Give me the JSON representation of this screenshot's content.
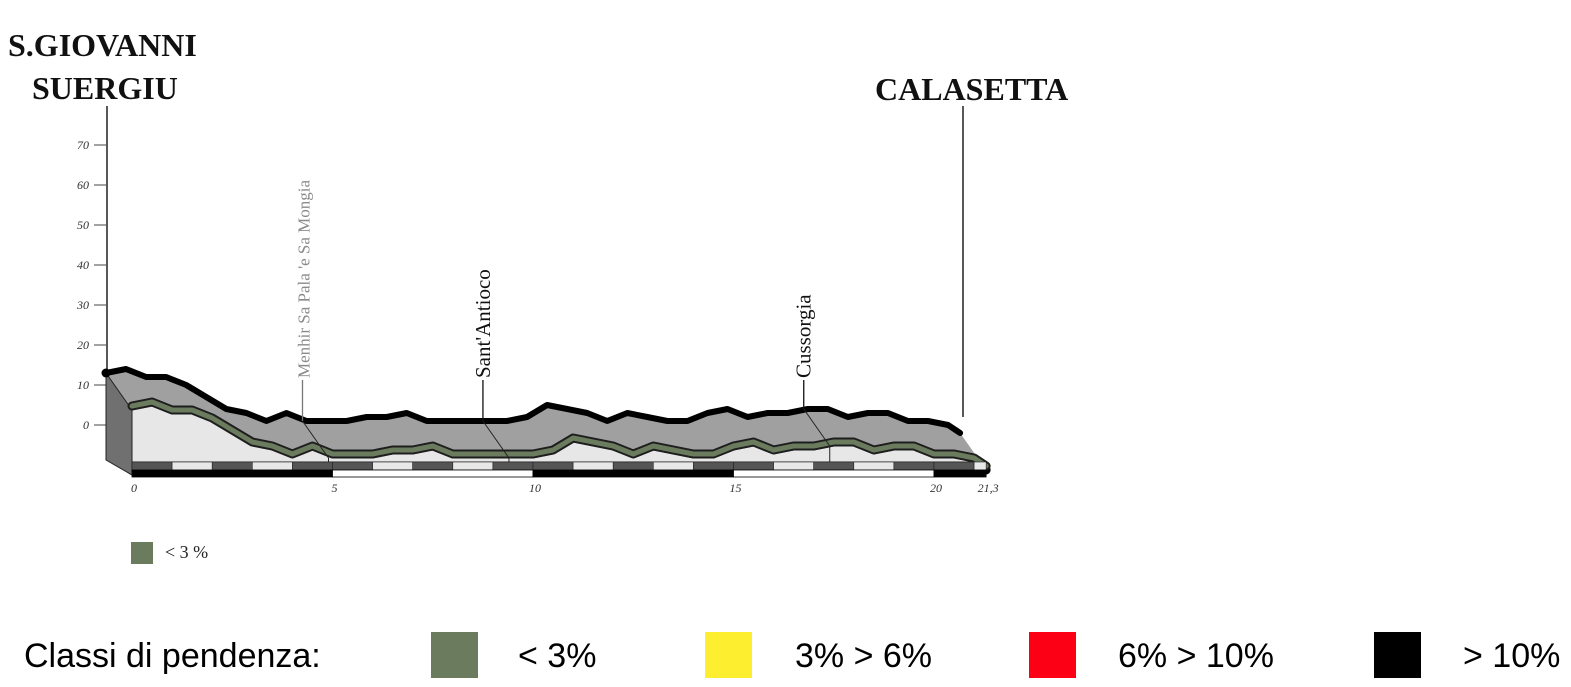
{
  "chart_data": {
    "type": "area",
    "places": {
      "start": [
        "S.GIOVANNI",
        "SUERGIU"
      ],
      "end": "CALASETTA"
    },
    "y_ticks": [
      "70",
      "60",
      "50",
      "40",
      "30",
      "20",
      "10",
      "0"
    ],
    "y_tick_values": [
      70,
      60,
      50,
      40,
      30,
      20,
      10,
      0
    ],
    "x_ticks": [
      {
        "value": 0,
        "label": "0"
      },
      {
        "value": 5,
        "label": "5"
      },
      {
        "value": 10,
        "label": "10"
      },
      {
        "value": 15,
        "label": "15"
      },
      {
        "value": 20,
        "label": "20"
      },
      {
        "value": 21.3,
        "label": "21,3"
      }
    ],
    "xlim": [
      0,
      21.3
    ],
    "ylim": [
      0,
      70
    ],
    "profile": {
      "x": [
        0,
        0.5,
        1,
        1.5,
        2,
        2.5,
        3,
        3.5,
        4,
        4.5,
        5,
        5.5,
        6,
        6.5,
        7,
        7.5,
        8,
        8.5,
        9,
        9.5,
        10,
        10.5,
        11,
        11.5,
        12,
        12.5,
        13,
        13.5,
        14,
        14.5,
        15,
        15.5,
        16,
        16.5,
        17,
        17.5,
        18,
        18.5,
        19,
        19.5,
        20,
        20.5,
        21,
        21.3
      ],
      "y": [
        13,
        14,
        12,
        12,
        10,
        7,
        4,
        3,
        1,
        3,
        1,
        1,
        1,
        2,
        2,
        3,
        1,
        1,
        1,
        1,
        1,
        2,
        5,
        4,
        3,
        1,
        3,
        2,
        1,
        1,
        3,
        4,
        2,
        3,
        3,
        4,
        4,
        2,
        3,
        3,
        1,
        1,
        0,
        -2
      ]
    },
    "points_of_interest": [
      {
        "label": "Menhir Sa Pala 'e Sa Mongia",
        "x": 4.9,
        "minor": true
      },
      {
        "label": "Sant'Antioco",
        "x": 9.4,
        "minor": false
      },
      {
        "label": "Cussorgia",
        "x": 17.4,
        "minor": false
      }
    ],
    "legend": [
      {
        "label": "< 3 %",
        "color": "#6b7b5e"
      }
    ]
  },
  "classes": {
    "title": "Classi di pendenza:",
    "items": [
      {
        "label": "< 3%",
        "color": "#6b7b5e"
      },
      {
        "label": "3% > 6%",
        "color": "#fdee2f"
      },
      {
        "label": "6% > 10%",
        "color": "#fc0016"
      },
      {
        "label": "> 10%",
        "color": "#000000"
      }
    ]
  },
  "colors": {
    "top_surface": "#a0a0a0",
    "front_face": "#e7e7e7",
    "left_face": "#707070",
    "profile_outline": "#000000",
    "grade_line": "#6b7b5e"
  }
}
